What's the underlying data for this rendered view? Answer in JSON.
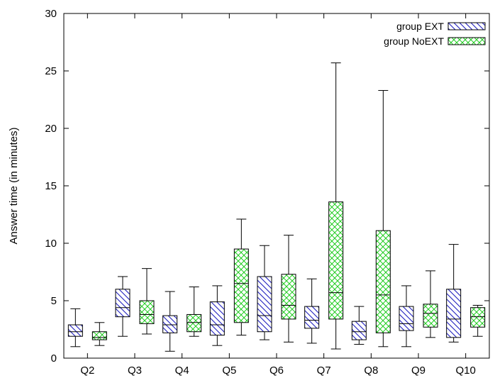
{
  "chart_data": {
    "type": "boxplot",
    "ylabel": "Answer time (in minutes)",
    "ylim": [
      0,
      30
    ],
    "y_ticks": [
      "0",
      "5",
      "10",
      "15",
      "20",
      "25",
      "30"
    ],
    "categories": [
      "Q2",
      "Q3",
      "Q4",
      "Q5",
      "Q6",
      "Q7",
      "Q8",
      "Q9",
      "Q10"
    ],
    "grid": false,
    "legend_position": "top-right",
    "series": [
      {
        "name": "group EXT",
        "pattern": "diagonal-hatch",
        "color": "#1e1ebe",
        "boxes": [
          {
            "min": 1.0,
            "q1": 1.9,
            "median": 2.3,
            "q3": 2.9,
            "max": 4.3
          },
          {
            "min": 1.9,
            "q1": 3.6,
            "median": 4.4,
            "q3": 6.0,
            "max": 7.1
          },
          {
            "min": 0.6,
            "q1": 2.2,
            "median": 2.9,
            "q3": 3.7,
            "max": 5.8
          },
          {
            "min": 1.1,
            "q1": 2.0,
            "median": 2.9,
            "q3": 4.9,
            "max": 6.3
          },
          {
            "min": 1.6,
            "q1": 2.3,
            "median": 3.7,
            "q3": 7.1,
            "max": 9.8
          },
          {
            "min": 1.3,
            "q1": 2.6,
            "median": 3.3,
            "q3": 4.5,
            "max": 6.9
          },
          {
            "min": 1.2,
            "q1": 1.6,
            "median": 2.3,
            "q3": 3.2,
            "max": 4.5
          },
          {
            "min": 1.0,
            "q1": 2.4,
            "median": 3.0,
            "q3": 4.5,
            "max": 6.3
          },
          {
            "min": 1.4,
            "q1": 1.8,
            "median": 3.4,
            "q3": 6.0,
            "max": 9.9
          }
        ]
      },
      {
        "name": "group NoEXT",
        "pattern": "cross-hatch",
        "color": "#22cc22",
        "boxes": [
          {
            "min": 1.1,
            "q1": 1.6,
            "median": 1.8,
            "q3": 2.3,
            "max": 3.1
          },
          {
            "min": 2.1,
            "q1": 3.0,
            "median": 3.8,
            "q3": 5.0,
            "max": 7.8
          },
          {
            "min": 1.9,
            "q1": 2.3,
            "median": 3.1,
            "q3": 3.8,
            "max": 6.2
          },
          {
            "min": 2.0,
            "q1": 3.1,
            "median": 6.5,
            "q3": 9.5,
            "max": 12.1
          },
          {
            "min": 1.4,
            "q1": 3.4,
            "median": 4.6,
            "q3": 7.3,
            "max": 10.7
          },
          {
            "min": 0.8,
            "q1": 3.4,
            "median": 5.7,
            "q3": 13.6,
            "max": 25.7
          },
          {
            "min": 1.0,
            "q1": 2.2,
            "median": 5.5,
            "q3": 11.1,
            "max": 23.3
          },
          {
            "min": 1.8,
            "q1": 2.7,
            "median": 3.9,
            "q3": 4.7,
            "max": 7.6
          },
          {
            "min": 1.9,
            "q1": 2.7,
            "median": 3.6,
            "q3": 4.4,
            "max": 4.6
          }
        ]
      }
    ]
  }
}
